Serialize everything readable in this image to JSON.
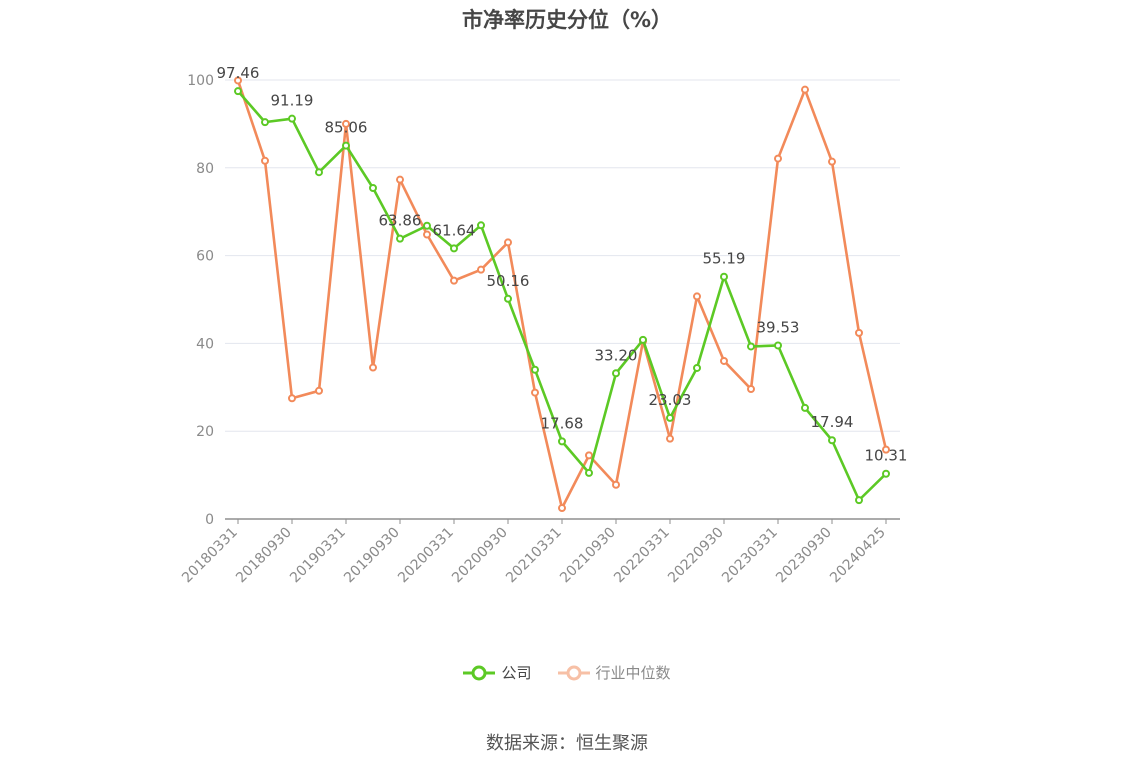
{
  "title": "市净率历史分位（%）",
  "source": "数据来源：恒生聚源",
  "chart_data": {
    "type": "line",
    "x": [
      "20180331",
      "20180630",
      "20180930",
      "20181231",
      "20190331",
      "20190630",
      "20190930",
      "20191231",
      "20200331",
      "20200630",
      "20200930",
      "20201231",
      "20210331",
      "20210630",
      "20210930",
      "20211231",
      "20220331",
      "20220630",
      "20220930",
      "20221231",
      "20230331",
      "20230630",
      "20230930",
      "20231231",
      "20240425"
    ],
    "x_tick_labels": [
      "20180331",
      "20180930",
      "20190331",
      "20190930",
      "20200331",
      "20200930",
      "20210331",
      "20210930",
      "20220331",
      "20220930",
      "20230331",
      "20230930",
      "20240425"
    ],
    "ylim": [
      0,
      100
    ],
    "y_ticks": [
      0,
      20,
      40,
      60,
      80,
      100
    ],
    "grid": true,
    "legend_position": "bottom",
    "series": [
      {
        "name": "公司",
        "color": "#5cc925",
        "values": [
          97.46,
          90.4,
          91.19,
          79.0,
          85.06,
          75.4,
          63.86,
          66.8,
          61.64,
          66.9,
          50.16,
          34.0,
          17.68,
          10.5,
          33.2,
          40.8,
          23.03,
          34.4,
          55.19,
          39.3,
          39.53,
          25.3,
          17.94,
          4.3,
          10.31
        ],
        "data_labels": {
          "0": "97.46",
          "2": "91.19",
          "4": "85.06",
          "6": "63.86",
          "8": "61.64",
          "10": "50.16",
          "12": "17.68",
          "14": "33.20",
          "16": "23.03",
          "18": "55.19",
          "20": "39.53",
          "22": "17.94",
          "24": "10.31"
        }
      },
      {
        "name": "行业中位数",
        "color": "#f28a5a",
        "values": [
          99.9,
          81.6,
          27.5,
          29.2,
          90.0,
          34.5,
          77.3,
          64.8,
          54.3,
          56.8,
          63.0,
          28.8,
          2.5,
          14.5,
          7.8,
          40.5,
          18.3,
          50.7,
          36.0,
          29.6,
          82.1,
          97.8,
          81.4,
          42.4,
          15.8
        ]
      }
    ]
  }
}
